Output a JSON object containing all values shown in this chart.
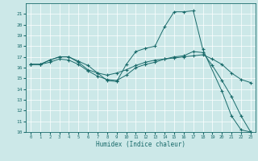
{
  "xlabel": "Humidex (Indice chaleur)",
  "xlim": [
    -0.5,
    23.5
  ],
  "ylim": [
    10,
    22
  ],
  "xticks": [
    0,
    1,
    2,
    3,
    4,
    5,
    6,
    7,
    8,
    9,
    10,
    11,
    12,
    13,
    14,
    15,
    16,
    17,
    18,
    19,
    20,
    21,
    22,
    23
  ],
  "yticks": [
    10,
    11,
    12,
    13,
    14,
    15,
    16,
    17,
    18,
    19,
    20,
    21
  ],
  "bg_color": "#cce8e8",
  "line_color": "#1a6b6b",
  "grid_color": "#ffffff",
  "lines": [
    {
      "x": [
        0,
        1,
        2,
        3,
        4,
        5,
        6,
        7,
        8,
        9,
        10,
        11,
        12,
        13,
        14,
        15,
        16,
        17,
        18,
        20,
        21,
        22,
        23
      ],
      "y": [
        16.3,
        16.3,
        16.7,
        17.0,
        17.0,
        16.6,
        16.2,
        15.5,
        14.8,
        14.7,
        16.3,
        17.5,
        17.8,
        18.0,
        19.8,
        21.2,
        21.2,
        21.3,
        17.7,
        13.8,
        11.5,
        10.2,
        10.0
      ]
    },
    {
      "x": [
        0,
        1,
        2,
        3,
        4,
        5,
        6,
        7,
        8,
        9,
        10,
        11,
        12,
        13,
        14,
        15,
        16,
        17,
        18,
        19,
        20,
        21,
        22,
        23
      ],
      "y": [
        16.3,
        16.3,
        16.7,
        17.0,
        17.0,
        16.5,
        15.8,
        15.5,
        15.3,
        15.5,
        15.8,
        16.2,
        16.5,
        16.7,
        16.8,
        16.9,
        17.0,
        17.1,
        17.2,
        16.8,
        16.3,
        15.5,
        14.9,
        14.6
      ]
    },
    {
      "x": [
        0,
        1,
        2,
        3,
        4,
        5,
        6,
        7,
        8,
        9,
        10,
        11,
        12,
        13,
        14,
        15,
        16,
        17,
        18,
        19,
        20,
        21,
        22,
        23
      ],
      "y": [
        16.3,
        16.3,
        16.5,
        16.8,
        16.7,
        16.3,
        15.7,
        15.2,
        14.9,
        14.8,
        15.3,
        16.0,
        16.3,
        16.5,
        16.8,
        17.0,
        17.1,
        17.5,
        17.4,
        16.2,
        14.8,
        13.3,
        11.5,
        10.0
      ]
    }
  ]
}
